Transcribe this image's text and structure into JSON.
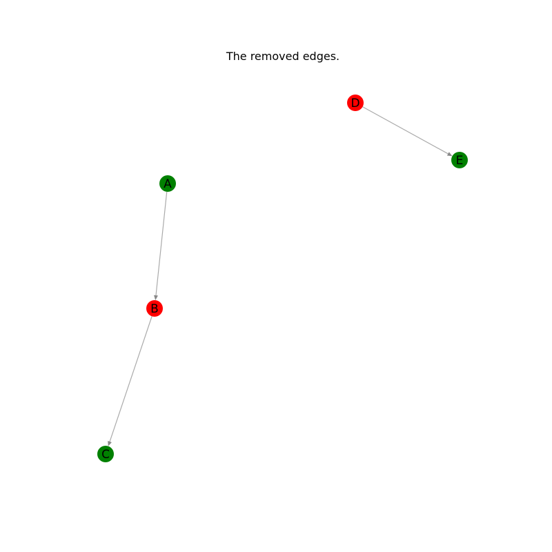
{
  "title": "The removed edges.",
  "colors": {
    "removed_node": "#ff0000",
    "kept_node": "#008000",
    "edge": "#aaaaaa",
    "arrow": "#888888",
    "label": "#000000"
  },
  "nodes": [
    {
      "id": "A",
      "label": "A",
      "color": "#008000"
    },
    {
      "id": "B",
      "label": "B",
      "color": "#ff0000"
    },
    {
      "id": "C",
      "label": "C",
      "color": "#008000"
    },
    {
      "id": "D",
      "label": "D",
      "color": "#ff0000"
    },
    {
      "id": "E",
      "label": "E",
      "color": "#008000"
    }
  ],
  "edges": [
    {
      "from": "A",
      "to": "B"
    },
    {
      "from": "B",
      "to": "C"
    },
    {
      "from": "D",
      "to": "E"
    }
  ]
}
